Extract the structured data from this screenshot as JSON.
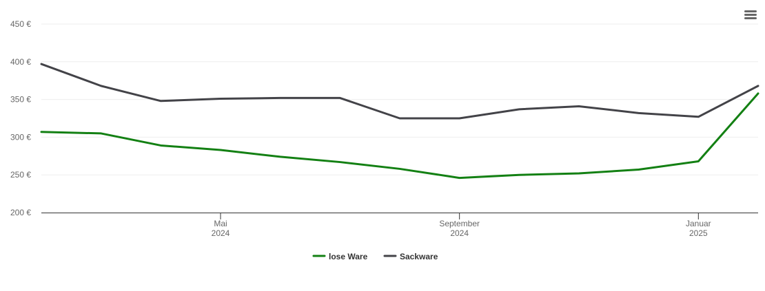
{
  "chart_data": {
    "type": "line",
    "x": [
      "2024-02",
      "2024-03",
      "2024-04",
      "2024-05",
      "2024-06",
      "2024-07",
      "2024-08",
      "2024-09",
      "2024-10",
      "2024-11",
      "2024-12",
      "2025-01",
      "2025-02"
    ],
    "series": [
      {
        "name": "lose Ware",
        "color": "#138013",
        "values": [
          307,
          305,
          289,
          283,
          274,
          267,
          258,
          246,
          250,
          252,
          257,
          268,
          358
        ]
      },
      {
        "name": "Sackware",
        "color": "#434348",
        "values": [
          397,
          368,
          348,
          351,
          352,
          352,
          325,
          325,
          337,
          341,
          332,
          327,
          368
        ]
      }
    ],
    "xlim": [
      "2024-02",
      "2025-02"
    ],
    "xticks": [
      {
        "value": "2024-05",
        "label": "Mai 2024"
      },
      {
        "value": "2024-09",
        "label": "September 2024"
      },
      {
        "value": "2025-01",
        "label": "Januar 2025"
      }
    ],
    "ylim": [
      200,
      450
    ],
    "yticks": [
      {
        "value": 200,
        "label": "200 €"
      },
      {
        "value": 250,
        "label": "250 €"
      },
      {
        "value": 300,
        "label": "300 €"
      },
      {
        "value": 350,
        "label": "350 €"
      },
      {
        "value": 400,
        "label": "400 €"
      },
      {
        "value": 450,
        "label": "450 €"
      }
    ],
    "grid": true
  }
}
